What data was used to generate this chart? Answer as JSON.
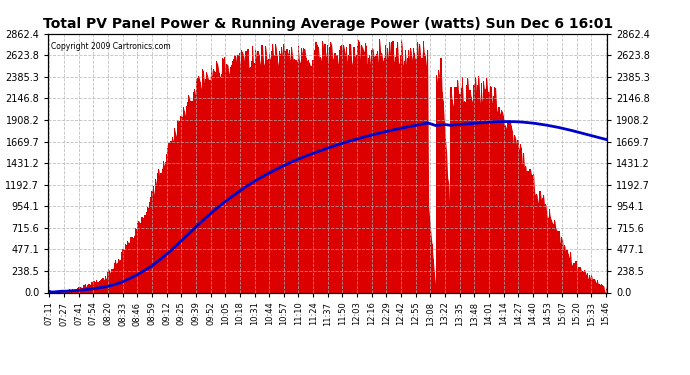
{
  "title": "Total PV Panel Power & Running Average Power (watts) Sun Dec 6 16:01",
  "copyright": "Copyright 2009 Cartronics.com",
  "background_color": "#ffffff",
  "plot_bg_color": "#ffffff",
  "bar_color": "#dd0000",
  "line_color": "#0000cc",
  "grid_color": "#aaaaaa",
  "ytick_labels": [
    "0.0",
    "238.5",
    "477.1",
    "715.6",
    "954.1",
    "1192.7",
    "1431.2",
    "1669.7",
    "1908.2",
    "2146.8",
    "2385.3",
    "2623.8",
    "2862.4"
  ],
  "ytick_values": [
    0.0,
    238.5,
    477.1,
    715.6,
    954.1,
    1192.7,
    1431.2,
    1669.7,
    1908.2,
    2146.8,
    2385.3,
    2623.8,
    2862.4
  ],
  "ymax": 2862.4,
  "ymin": 0.0,
  "xtick_labels": [
    "07:11",
    "07:27",
    "07:41",
    "07:54",
    "08:20",
    "08:33",
    "08:46",
    "08:59",
    "09:12",
    "09:25",
    "09:39",
    "09:52",
    "10:05",
    "10:18",
    "10:31",
    "10:44",
    "10:57",
    "11:10",
    "11:24",
    "11:37",
    "11:50",
    "12:03",
    "12:16",
    "12:29",
    "12:42",
    "12:55",
    "13:08",
    "13:22",
    "13:35",
    "13:48",
    "14:01",
    "14:14",
    "14:27",
    "14:40",
    "14:53",
    "15:07",
    "15:20",
    "15:33",
    "15:46"
  ],
  "n_points": 500
}
